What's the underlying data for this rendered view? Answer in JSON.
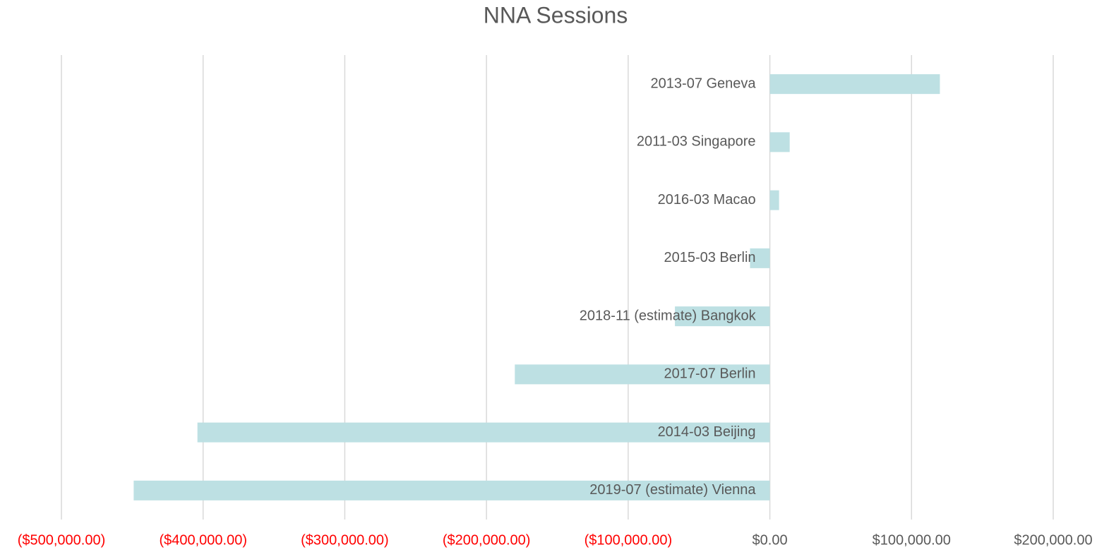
{
  "chart_data": {
    "type": "hbar",
    "title": "NNA Sessions",
    "categories": [
      "2013-07 Geneva",
      "2011-03 Singapore",
      "2016-03 Macao",
      "2015-03 Berlin",
      "2018-11 (estimate) Bangkok",
      "2017-07 Berlin",
      "2014-03 Beijing",
      "2019-07 (estimate) Vienna"
    ],
    "values": [
      120000,
      14000,
      6500,
      -14000,
      -67000,
      -180000,
      -404000,
      -449000
    ],
    "color": "#bde0e3",
    "xlim": [
      -500000,
      200000
    ],
    "xticks": [
      {
        "value": -500000,
        "label": "($500,000.00)"
      },
      {
        "value": -400000,
        "label": "($400,000.00)"
      },
      {
        "value": -300000,
        "label": "($300,000.00)"
      },
      {
        "value": -200000,
        "label": "($200,000.00)"
      },
      {
        "value": -100000,
        "label": "($100,000.00)"
      },
      {
        "value": 0,
        "label": "$0.00"
      },
      {
        "value": 100000,
        "label": "$100,000.00"
      },
      {
        "value": 200000,
        "label": "$200,000.00"
      }
    ],
    "tick_color": "#595959",
    "negative_tick_color": "#ff0000",
    "grid": true
  }
}
